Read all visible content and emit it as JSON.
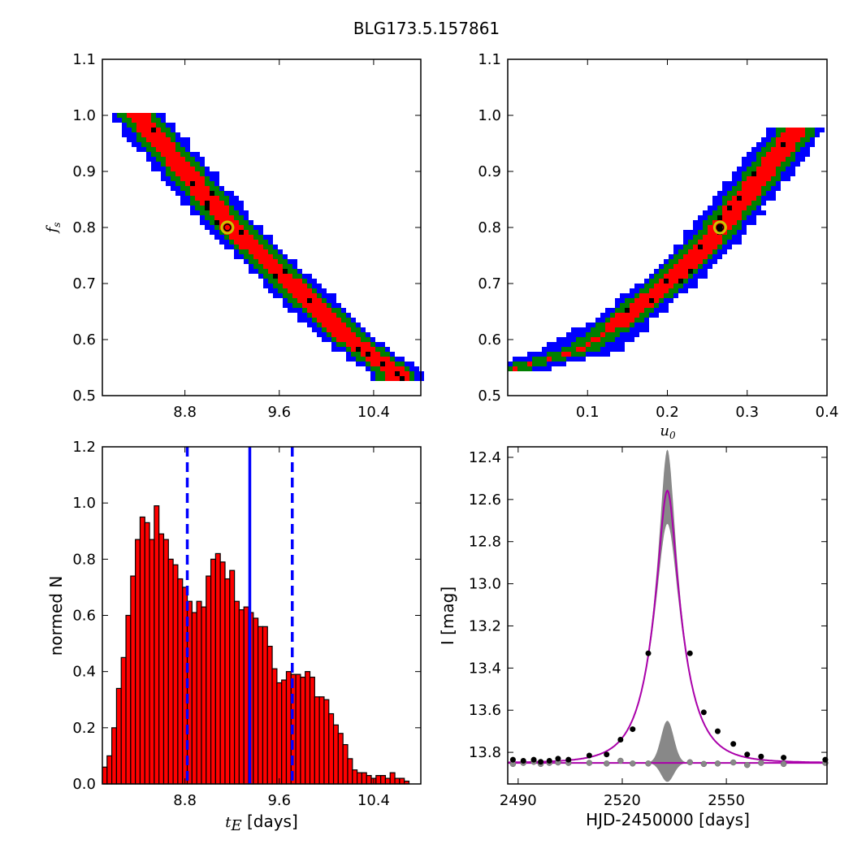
{
  "chart_data": [
    {
      "type": "heatmap",
      "title": "BLG173.5.157861",
      "xlabel": "",
      "ylabel": "f_s",
      "xlim": [
        8.1,
        10.8
      ],
      "ylim": [
        0.5,
        1.1
      ],
      "xticks": [
        "8.8",
        "9.6",
        "10.4"
      ],
      "yticks": [
        "0.5",
        "0.6",
        "0.7",
        "0.8",
        "0.9",
        "1.0",
        "1.1"
      ],
      "colors": {
        "blue": "#0000ff",
        "green": "#007f00",
        "red": "#ff0000",
        "black": "#000000"
      },
      "ridge": [
        [
          8.4,
          1.0
        ],
        [
          8.8,
          0.9
        ],
        [
          9.2,
          0.8
        ],
        [
          9.7,
          0.7
        ],
        [
          10.2,
          0.6
        ],
        [
          10.6,
          0.54
        ]
      ],
      "best_fit": {
        "x": 9.16,
        "y": 0.8
      }
    },
    {
      "type": "heatmap",
      "xlabel": "u_0",
      "ylabel": "",
      "xlim": [
        0.0,
        0.4
      ],
      "ylim": [
        0.5,
        1.1
      ],
      "xticks": [
        "0.1",
        "0.2",
        "0.3",
        "0.4"
      ],
      "yticks": [
        "0.5",
        "0.6",
        "0.7",
        "0.8",
        "0.9",
        "1.0",
        "1.1"
      ],
      "ridge": [
        [
          0.01,
          0.55
        ],
        [
          0.09,
          0.58
        ],
        [
          0.14,
          0.63
        ],
        [
          0.2,
          0.7
        ],
        [
          0.25,
          0.77
        ],
        [
          0.3,
          0.86
        ],
        [
          0.36,
          0.97
        ]
      ],
      "best_fit": {
        "x": 0.266,
        "y": 0.8
      }
    },
    {
      "type": "bar",
      "xlabel": "t_E  [days]",
      "ylabel": "normed N",
      "xlim": [
        8.1,
        10.8
      ],
      "ylim": [
        0.0,
        1.2
      ],
      "xticks": [
        "8.8",
        "9.6",
        "10.4"
      ],
      "yticks": [
        "0.0",
        "0.2",
        "0.4",
        "0.6",
        "0.8",
        "1.0",
        "1.2"
      ],
      "bin_start": 8.1,
      "bin_width": 0.04,
      "values": [
        0.06,
        0.1,
        0.2,
        0.34,
        0.45,
        0.6,
        0.74,
        0.87,
        0.95,
        0.93,
        0.87,
        0.99,
        0.89,
        0.87,
        0.8,
        0.78,
        0.73,
        0.7,
        0.65,
        0.61,
        0.65,
        0.63,
        0.74,
        0.8,
        0.82,
        0.79,
        0.73,
        0.76,
        0.65,
        0.62,
        0.63,
        0.61,
        0.59,
        0.56,
        0.56,
        0.49,
        0.41,
        0.36,
        0.37,
        0.4,
        0.39,
        0.39,
        0.38,
        0.4,
        0.38,
        0.31,
        0.31,
        0.3,
        0.25,
        0.21,
        0.18,
        0.14,
        0.09,
        0.05,
        0.04,
        0.04,
        0.03,
        0.02,
        0.03,
        0.03,
        0.02,
        0.04,
        0.02,
        0.02,
        0.01
      ],
      "bar_color": "#ff0000",
      "median": 9.35,
      "interval": [
        8.82,
        9.71
      ],
      "line_color": "#0000ff"
    },
    {
      "type": "line",
      "xlabel": "HJD-2450000 [days]",
      "ylabel": "I [mag]",
      "xlim": [
        2487,
        2579
      ],
      "ylim": [
        13.95,
        12.35
      ],
      "xticks": [
        "2490",
        "2520",
        "2550"
      ],
      "yticks": [
        "12.4",
        "12.6",
        "12.8",
        "13.0",
        "13.2",
        "13.4",
        "13.6",
        "13.8"
      ],
      "model": {
        "t0": 2533,
        "tE": 9.1,
        "u0": 0.266,
        "fs": 0.8,
        "base": 13.85
      },
      "model_color": "#aa00aa",
      "points": [
        [
          2488.5,
          13.835
        ],
        [
          2491.5,
          13.84
        ],
        [
          2494.5,
          13.835
        ],
        [
          2496.5,
          13.845
        ],
        [
          2499,
          13.84
        ],
        [
          2501.5,
          13.83
        ],
        [
          2504.5,
          13.835
        ],
        [
          2510.5,
          13.815
        ],
        [
          2515.5,
          13.81
        ],
        [
          2519.5,
          13.74
        ],
        [
          2523,
          13.69
        ],
        [
          2527.5,
          13.33
        ],
        [
          2539.5,
          13.33
        ],
        [
          2543.5,
          13.61
        ],
        [
          2547.5,
          13.7
        ],
        [
          2552,
          13.76
        ],
        [
          2556,
          13.81
        ],
        [
          2560,
          13.82
        ],
        [
          2566.5,
          13.825
        ],
        [
          2578.5,
          13.835
        ]
      ],
      "residuals": [
        [
          2488.5,
          13.855
        ],
        [
          2491.5,
          13.85
        ],
        [
          2494.5,
          13.845
        ],
        [
          2496.5,
          13.855
        ],
        [
          2499,
          13.85
        ],
        [
          2501.5,
          13.848
        ],
        [
          2504.5,
          13.85
        ],
        [
          2510.5,
          13.85
        ],
        [
          2515.5,
          13.853
        ],
        [
          2519.5,
          13.84
        ],
        [
          2523,
          13.853
        ],
        [
          2527.5,
          13.853
        ],
        [
          2539.5,
          13.847
        ],
        [
          2543.5,
          13.855
        ],
        [
          2547.5,
          13.853
        ],
        [
          2552,
          13.848
        ],
        [
          2556,
          13.86
        ],
        [
          2560,
          13.85
        ],
        [
          2566.5,
          13.855
        ],
        [
          2578.5,
          13.85
        ]
      ],
      "uncertainty_color": "#888888",
      "residual_band_peak": 13.65,
      "residual_band_trough": 13.94
    }
  ]
}
